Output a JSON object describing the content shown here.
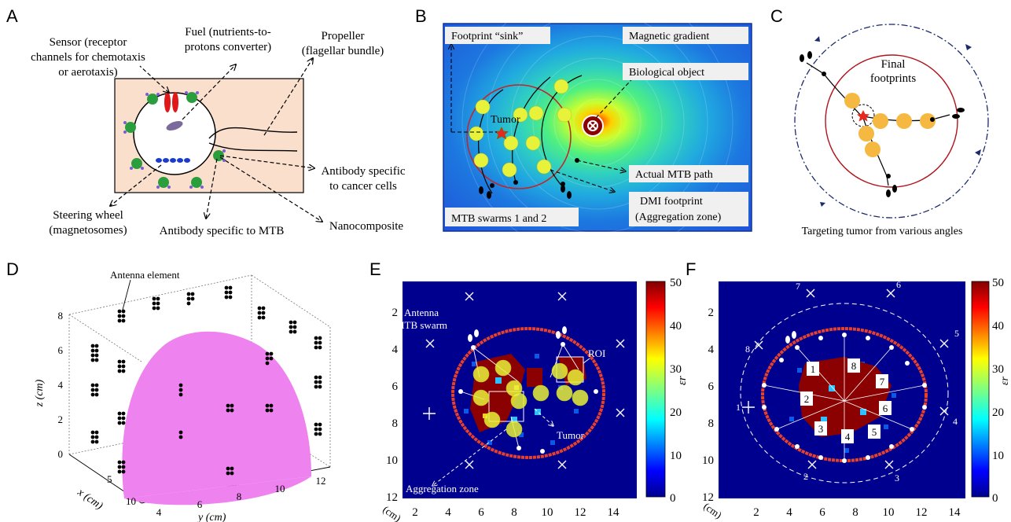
{
  "panels": {
    "A": {
      "label": "A",
      "sensor": [
        "Sensor (receptor",
        "channels for chemotaxis",
        "or aerotaxis)"
      ],
      "fuel": [
        "Fuel (nutrients-to-",
        "protons converter)"
      ],
      "propeller": [
        "Propeller",
        "(flagellar bundle)"
      ],
      "antibody_cancer": [
        "Antibody specific",
        "to cancer cells"
      ],
      "steering": [
        "Steering wheel",
        "(magnetosomes)"
      ],
      "antibody_mtb": "Antibody specific to MTB",
      "nanocomposite": "Nanocomposite"
    },
    "B": {
      "label": "B",
      "sink": "Footprint “sink”",
      "gradient": "Magnetic gradient",
      "bio": "Biological object",
      "tumor": "Tumor",
      "path": "Actual MTB path",
      "dmi": [
        "DMI footprint",
        "(Aggregation zone)"
      ],
      "swarms": "MTB swarms 1 and 2"
    },
    "C": {
      "label": "C",
      "final": [
        "Final",
        "footprints"
      ],
      "caption": "Targeting tumor from various angles"
    },
    "D": {
      "label": "D",
      "antenna": "Antenna element",
      "zticks": [
        "8",
        "6",
        "4",
        "2",
        "0"
      ],
      "zlabel": "z (cm)",
      "xlabel": "x (cm)",
      "ylabel": "y (cm)",
      "xticks": [
        "5",
        "10"
      ],
      "yticks": [
        "4",
        "6",
        "8",
        "10",
        "12"
      ]
    },
    "E": {
      "label": "E",
      "antenna": [
        "Antenna",
        "MTB swarm"
      ],
      "roi": "ROI",
      "tumor": "Tumor",
      "agg": "Aggregation zone",
      "unit": "(cm)",
      "yticks": [
        "2",
        "4",
        "6",
        "8",
        "10",
        "12"
      ],
      "xticks": [
        "2",
        "4",
        "6",
        "8",
        "10",
        "12",
        "14"
      ],
      "cticks": [
        "50",
        "40",
        "30",
        "20",
        "10",
        "0"
      ],
      "clabel": "εr"
    },
    "F": {
      "label": "F",
      "unit": "(cm)",
      "yticks": [
        "2",
        "4",
        "6",
        "8",
        "10",
        "12"
      ],
      "xticks": [
        "2",
        "4",
        "6",
        "8",
        "10",
        "12",
        "14"
      ],
      "cticks": [
        "50",
        "40",
        "30",
        "20",
        "10",
        "0"
      ],
      "clabel": "εr",
      "antenna_nums": [
        "1",
        "2",
        "3",
        "4",
        "5",
        "6",
        "7",
        "8"
      ],
      "path_nums": [
        "1",
        "2",
        "3",
        "4",
        "5",
        "6",
        "7",
        "8"
      ]
    }
  },
  "colors": {
    "panelBg_A": "#f9dfcc",
    "field_blue": "#1f4fd8",
    "jet_dark": "#00008f",
    "tumor_red": "#8b0000",
    "boundary": "#e8412a",
    "yellow_dot": "#e9f23a",
    "orange_dot": "#f5b841",
    "phantom_pink": "#ee82ee"
  }
}
